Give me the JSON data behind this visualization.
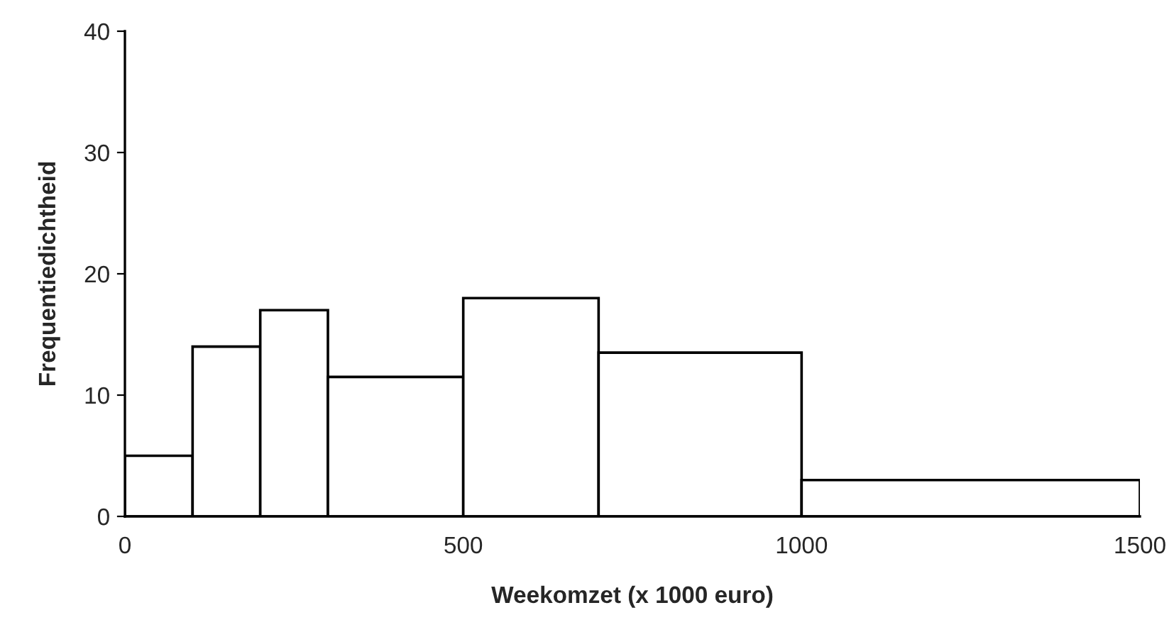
{
  "chart_data": {
    "type": "histogram",
    "xlabel": "Weekomzet (x 1000 euro)",
    "ylabel": "Frequentiedichtheid",
    "bins": [
      0,
      100,
      200,
      300,
      500,
      700,
      1000,
      1500
    ],
    "values": [
      5,
      14,
      17,
      11.5,
      18,
      13.5,
      3
    ],
    "color": "#ffffff",
    "xlim": [
      0,
      1500
    ],
    "xticks": [
      0,
      500,
      1000,
      1500
    ],
    "ylim": [
      0,
      40
    ],
    "yticks": [
      0,
      10,
      20,
      30,
      40
    ],
    "grid": false,
    "legend": false
  }
}
